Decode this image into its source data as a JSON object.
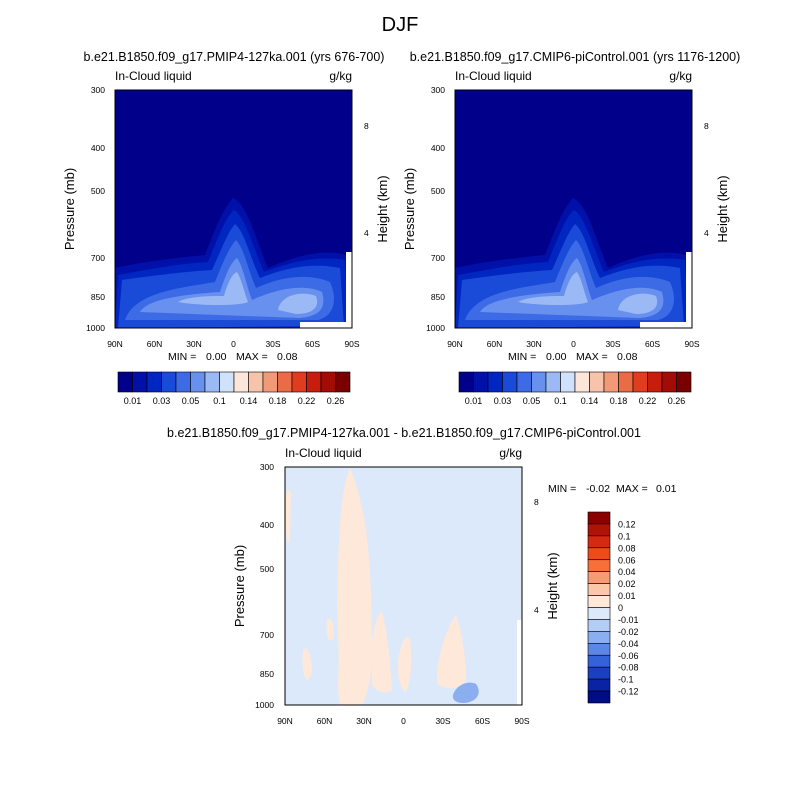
{
  "figure_title": "DJF",
  "chart_data": [
    {
      "type": "heatmap",
      "title": "b.e21.B1850.f09_g17.PMIP4-127ka.001 (yrs 676-700)",
      "left_label": "In-Cloud liquid",
      "right_label": "g/kg",
      "ylabel": "Pressure (mb)",
      "ylabel_right": "Height (km)",
      "x_ticks": [
        "90N",
        "60N",
        "30N",
        "0",
        "30S",
        "60S",
        "90S"
      ],
      "y_ticks": [
        "300",
        "400",
        "500",
        "700",
        "850",
        "1000"
      ],
      "y_ticks_right": [
        "8",
        "4"
      ],
      "stats": {
        "min_label": "MIN =",
        "min": "0.00",
        "max_label": "MAX =",
        "max": "0.08"
      },
      "colorbar": {
        "orientation": "horizontal",
        "levels": [
          0.01,
          0.02,
          0.03,
          0.04,
          0.05,
          0.06,
          0.1,
          0.12,
          0.14,
          0.16,
          0.18,
          0.2,
          0.22,
          0.24,
          0.26
        ],
        "tick_labels": [
          "0.01",
          "0.03",
          "0.05",
          "0.1",
          "0.14",
          "0.18",
          "0.22",
          "0.26"
        ],
        "colors": [
          "#00008a",
          "#0010a8",
          "#0026c2",
          "#1a4ad8",
          "#3d6be6",
          "#6890ee",
          "#9bb9f5",
          "#cfe1fb",
          "#fbe6d9",
          "#f7c3aa",
          "#f29a78",
          "#ea6c47",
          "#e03d1f",
          "#c71d0c",
          "#a30b05",
          "#7a0000"
        ]
      }
    },
    {
      "type": "heatmap",
      "title": "b.e21.B1850.f09_g17.CMIP6-piControl.001 (yrs 1176-1200)",
      "left_label": "In-Cloud liquid",
      "right_label": "g/kg",
      "ylabel": "Pressure (mb)",
      "ylabel_right": "Height (km)",
      "x_ticks": [
        "90N",
        "60N",
        "30N",
        "0",
        "30S",
        "60S",
        "90S"
      ],
      "y_ticks": [
        "300",
        "400",
        "500",
        "700",
        "850",
        "1000"
      ],
      "y_ticks_right": [
        "8",
        "4"
      ],
      "stats": {
        "min_label": "MIN =",
        "min": "0.00",
        "max_label": "MAX =",
        "max": "0.08"
      },
      "colorbar": {
        "orientation": "horizontal",
        "levels": [
          0.01,
          0.02,
          0.03,
          0.04,
          0.05,
          0.06,
          0.1,
          0.12,
          0.14,
          0.16,
          0.18,
          0.2,
          0.22,
          0.24,
          0.26
        ],
        "tick_labels": [
          "0.01",
          "0.03",
          "0.05",
          "0.1",
          "0.14",
          "0.18",
          "0.22",
          "0.26"
        ],
        "colors": [
          "#00008a",
          "#0010a8",
          "#0026c2",
          "#1a4ad8",
          "#3d6be6",
          "#6890ee",
          "#9bb9f5",
          "#cfe1fb",
          "#fbe6d9",
          "#f7c3aa",
          "#f29a78",
          "#ea6c47",
          "#e03d1f",
          "#c71d0c",
          "#a30b05",
          "#7a0000"
        ]
      }
    },
    {
      "type": "heatmap",
      "title": "b.e21.B1850.f09_g17.PMIP4-127ka.001 - b.e21.B1850.f09_g17.CMIP6-piControl.001",
      "left_label": "In-Cloud liquid",
      "right_label": "g/kg",
      "ylabel": "Pressure (mb)",
      "ylabel_right": "Height (km)",
      "x_ticks": [
        "90N",
        "60N",
        "30N",
        "0",
        "30S",
        "60S",
        "90S"
      ],
      "y_ticks": [
        "300",
        "400",
        "500",
        "700",
        "850",
        "1000"
      ],
      "y_ticks_right": [
        "8",
        "4"
      ],
      "stats": {
        "min_label": "MIN =",
        "min": "-0.02",
        "max_label": "MAX =",
        "max": "0.01"
      },
      "colorbar": {
        "orientation": "vertical",
        "labels_top_to_bottom": [
          "0.12",
          "0.1",
          "0.08",
          "0.06",
          "0.04",
          "0.02",
          "0.01",
          "0",
          "-0.01",
          "-0.02",
          "-0.04",
          "-0.06",
          "-0.08",
          "-0.1",
          "-0.12"
        ],
        "colors_top_to_bottom": [
          "#8a0000",
          "#b01306",
          "#d42a10",
          "#ee4a1a",
          "#f7703a",
          "#f89a73",
          "#fbc7aa",
          "#fde8da",
          "#dce9fb",
          "#b4cdf6",
          "#8aaef0",
          "#5d86e6",
          "#3462d8",
          "#1a40c0",
          "#0a22a3",
          "#000c85"
        ]
      }
    }
  ]
}
